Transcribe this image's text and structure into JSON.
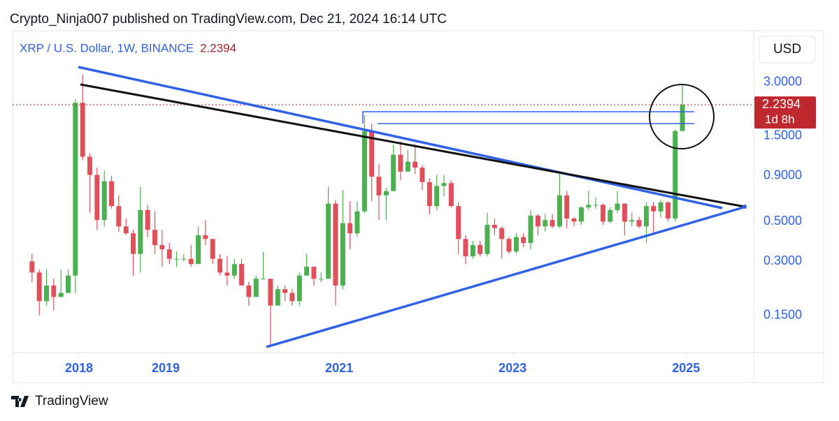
{
  "header": {
    "title": "Crypto_Ninja007 published on TradingView.com, Dec 21, 2024 16:14 UTC"
  },
  "footer": {
    "brand": "TradingView"
  },
  "chart_data": {
    "type": "candlestick",
    "title": "XRP / U.S. Dollar, 1W, BINANCE",
    "last_price": 2.2394,
    "countdown": "1d 8h",
    "axis_unit": "USD",
    "log_scale": true,
    "up_color": "#4caf50",
    "down_color": "#e0505a",
    "xlim": [
      2017.234,
      2025.78
    ],
    "xticks": [
      2018,
      2019,
      2021,
      2023,
      2025
    ],
    "ylim": [
      0.093,
      5.8
    ],
    "yticks": [
      {
        "value": 3,
        "label": "3.0000"
      },
      {
        "value": 1.5,
        "label": "1.5000"
      },
      {
        "value": 0.9,
        "label": "0.9000"
      },
      {
        "value": 0.5,
        "label": "0.5000"
      },
      {
        "value": 0.3,
        "label": "0.3000"
      },
      {
        "value": 0.15,
        "label": "0.1500"
      }
    ],
    "x": [
      2017.458,
      2017.542,
      2017.625,
      2017.708,
      2017.792,
      2017.875,
      2017.958,
      2018.042,
      2018.125,
      2018.208,
      2018.292,
      2018.375,
      2018.458,
      2018.542,
      2018.625,
      2018.708,
      2018.792,
      2018.875,
      2018.958,
      2019.042,
      2019.125,
      2019.208,
      2019.292,
      2019.375,
      2019.458,
      2019.542,
      2019.625,
      2019.708,
      2019.792,
      2019.875,
      2019.958,
      2020.042,
      2020.125,
      2020.208,
      2020.292,
      2020.375,
      2020.458,
      2020.542,
      2020.625,
      2020.708,
      2020.792,
      2020.875,
      2020.958,
      2021.042,
      2021.125,
      2021.208,
      2021.292,
      2021.375,
      2021.458,
      2021.542,
      2021.625,
      2021.708,
      2021.792,
      2021.875,
      2021.958,
      2022.042,
      2022.125,
      2022.208,
      2022.292,
      2022.375,
      2022.458,
      2022.542,
      2022.625,
      2022.708,
      2022.792,
      2022.875,
      2022.958,
      2023.042,
      2023.125,
      2023.208,
      2023.292,
      2023.375,
      2023.458,
      2023.542,
      2023.625,
      2023.708,
      2023.792,
      2023.875,
      2023.958,
      2024.042,
      2024.125,
      2024.208,
      2024.292,
      2024.375,
      2024.458,
      2024.542,
      2024.625,
      2024.708,
      2024.792,
      2024.875,
      2024.958
    ],
    "open": [
      0.3,
      0.26,
      0.18,
      0.22,
      0.19,
      0.2,
      0.25,
      2.3,
      1.15,
      0.91,
      0.51,
      0.84,
      0.61,
      0.47,
      0.43,
      0.33,
      0.58,
      0.45,
      0.37,
      0.35,
      0.31,
      0.31,
      0.31,
      0.29,
      0.42,
      0.4,
      0.31,
      0.26,
      0.25,
      0.29,
      0.22,
      0.19,
      0.24,
      0.24,
      0.17,
      0.21,
      0.2,
      0.18,
      0.25,
      0.28,
      0.24,
      0.24,
      0.63,
      0.22,
      0.49,
      0.43,
      0.57,
      1.6,
      0.89,
      0.7,
      0.74,
      1.18,
      0.95,
      1.08,
      1.0,
      0.83,
      0.61,
      0.79,
      0.82,
      0.61,
      0.4,
      0.32,
      0.37,
      0.33,
      0.48,
      0.46,
      0.4,
      0.34,
      0.41,
      0.38,
      0.54,
      0.47,
      0.51,
      0.47,
      0.7,
      0.52,
      0.5,
      0.6,
      0.62,
      0.62,
      0.5,
      0.58,
      0.63,
      0.5,
      0.51,
      0.47,
      0.61,
      0.57,
      0.64,
      0.52,
      1.6
    ],
    "high": [
      0.33,
      0.27,
      0.27,
      0.24,
      0.27,
      0.27,
      2.4,
      3.3,
      1.2,
      1.0,
      0.96,
      0.9,
      0.7,
      0.52,
      0.45,
      0.78,
      0.62,
      0.57,
      0.45,
      0.38,
      0.34,
      0.33,
      0.37,
      0.47,
      0.51,
      0.4,
      0.33,
      0.32,
      0.31,
      0.31,
      0.23,
      0.25,
      0.34,
      0.24,
      0.22,
      0.22,
      0.21,
      0.26,
      0.33,
      0.28,
      0.26,
      0.78,
      0.66,
      0.75,
      0.65,
      0.65,
      1.96,
      1.76,
      1.05,
      0.77,
      1.34,
      1.4,
      1.25,
      1.35,
      1.03,
      0.87,
      0.91,
      0.91,
      0.85,
      0.64,
      0.42,
      0.39,
      0.39,
      0.56,
      0.52,
      0.47,
      0.41,
      0.43,
      0.43,
      0.58,
      0.55,
      0.55,
      0.55,
      0.94,
      0.74,
      0.53,
      0.61,
      0.74,
      0.68,
      0.63,
      0.6,
      0.74,
      0.63,
      0.56,
      0.53,
      0.64,
      0.64,
      0.66,
      0.65,
      1.63,
      2.9
    ],
    "low": [
      0.23,
      0.15,
      0.17,
      0.16,
      0.19,
      0.2,
      0.2,
      1.1,
      0.56,
      0.45,
      0.47,
      0.59,
      0.44,
      0.42,
      0.25,
      0.26,
      0.41,
      0.33,
      0.28,
      0.29,
      0.28,
      0.3,
      0.28,
      0.29,
      0.37,
      0.29,
      0.25,
      0.22,
      0.24,
      0.22,
      0.17,
      0.19,
      0.24,
      0.102,
      0.17,
      0.18,
      0.17,
      0.17,
      0.25,
      0.22,
      0.23,
      0.24,
      0.17,
      0.21,
      0.35,
      0.41,
      0.56,
      0.65,
      0.51,
      0.51,
      0.74,
      0.85,
      0.95,
      0.92,
      0.75,
      0.55,
      0.58,
      0.69,
      0.6,
      0.33,
      0.29,
      0.31,
      0.32,
      0.32,
      0.42,
      0.31,
      0.33,
      0.33,
      0.36,
      0.35,
      0.42,
      0.44,
      0.46,
      0.46,
      0.46,
      0.47,
      0.48,
      0.58,
      0.59,
      0.48,
      0.49,
      0.56,
      0.42,
      0.47,
      0.46,
      0.38,
      0.43,
      0.53,
      0.5,
      0.5,
      1.6
    ],
    "close": [
      0.26,
      0.18,
      0.22,
      0.19,
      0.2,
      0.25,
      2.3,
      1.15,
      0.91,
      0.51,
      0.84,
      0.61,
      0.47,
      0.43,
      0.33,
      0.58,
      0.45,
      0.37,
      0.35,
      0.31,
      0.31,
      0.31,
      0.29,
      0.42,
      0.4,
      0.31,
      0.26,
      0.25,
      0.29,
      0.22,
      0.19,
      0.24,
      0.24,
      0.17,
      0.21,
      0.2,
      0.18,
      0.25,
      0.28,
      0.24,
      0.24,
      0.63,
      0.22,
      0.49,
      0.43,
      0.57,
      1.6,
      0.89,
      0.7,
      0.74,
      1.18,
      0.95,
      1.08,
      1.0,
      0.83,
      0.61,
      0.79,
      0.82,
      0.61,
      0.4,
      0.32,
      0.37,
      0.33,
      0.48,
      0.46,
      0.4,
      0.34,
      0.41,
      0.38,
      0.54,
      0.47,
      0.51,
      0.47,
      0.7,
      0.52,
      0.5,
      0.6,
      0.62,
      0.62,
      0.5,
      0.58,
      0.63,
      0.5,
      0.51,
      0.47,
      0.61,
      0.57,
      0.64,
      0.52,
      1.6,
      2.24
    ]
  }
}
